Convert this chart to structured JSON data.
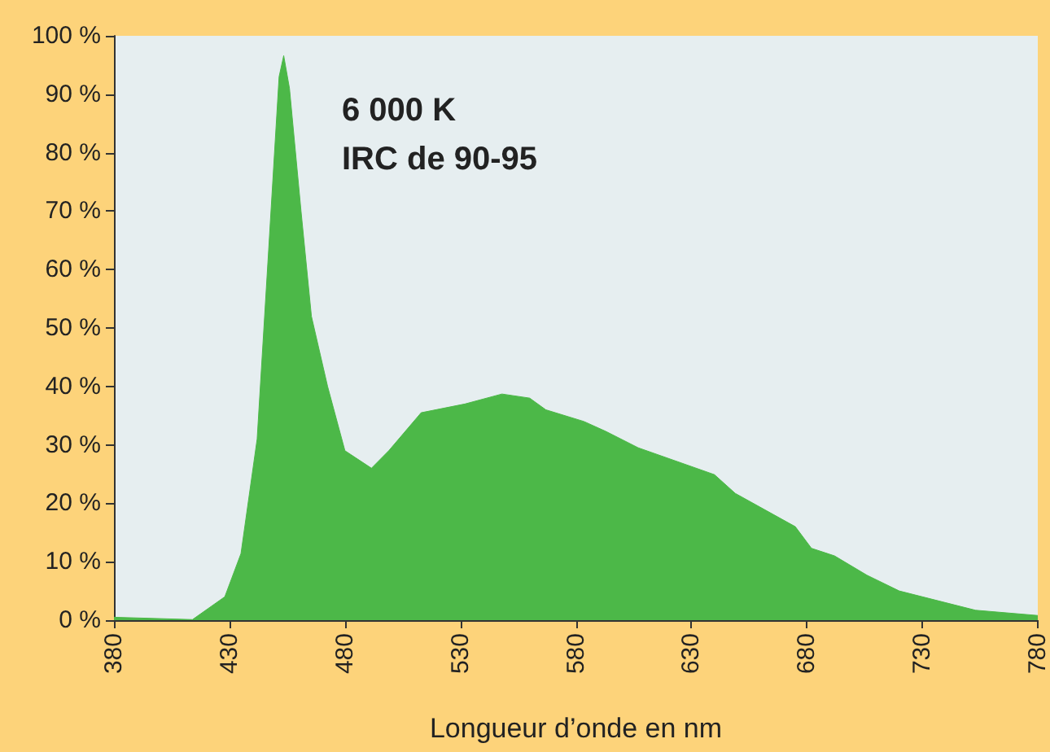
{
  "chart_data": {
    "type": "area",
    "xlabel": "Longueur d’onde en nm",
    "annotations": [
      "6 000 K",
      "IRC de 90-95"
    ],
    "x": [
      380,
      414,
      428,
      435,
      442,
      447,
      451.5,
      453.5,
      456,
      461,
      465.5,
      472.5,
      480,
      491.5,
      499,
      513,
      532,
      548,
      560,
      567,
      583.5,
      593,
      607,
      640,
      649,
      675,
      682,
      692,
      706,
      720,
      744,
      753,
      780
    ],
    "series": [
      {
        "color": "#4cb848",
        "values": [
          0.5,
          0.1,
          4,
          11.4,
          31,
          63.5,
          93,
          96.6,
          91,
          70,
          52,
          40,
          29,
          26,
          29,
          35.5,
          37,
          38.7,
          38,
          36,
          34,
          32.3,
          29.5,
          24.9,
          21.7,
          16,
          12.3,
          11,
          7.7,
          5,
          2.6,
          1.7,
          0.8
        ]
      }
    ],
    "xlim": [
      380,
      780
    ],
    "xticks": [
      380,
      430,
      480,
      530,
      580,
      630,
      680,
      730,
      780
    ],
    "ylim": [
      0,
      100
    ],
    "yticks": [
      {
        "value": 0,
        "label": "0 %"
      },
      {
        "value": 10,
        "label": "10 %"
      },
      {
        "value": 20,
        "label": "20 %"
      },
      {
        "value": 30,
        "label": "30 %"
      },
      {
        "value": 40,
        "label": "40 %"
      },
      {
        "value": 50,
        "label": "50 %"
      },
      {
        "value": 60,
        "label": "60 %"
      },
      {
        "value": 70,
        "label": "70 %"
      },
      {
        "value": 80,
        "label": "80 %"
      },
      {
        "value": 90,
        "label": "90 %"
      },
      {
        "value": 100,
        "label": "100 %"
      }
    ],
    "marker": "none"
  }
}
